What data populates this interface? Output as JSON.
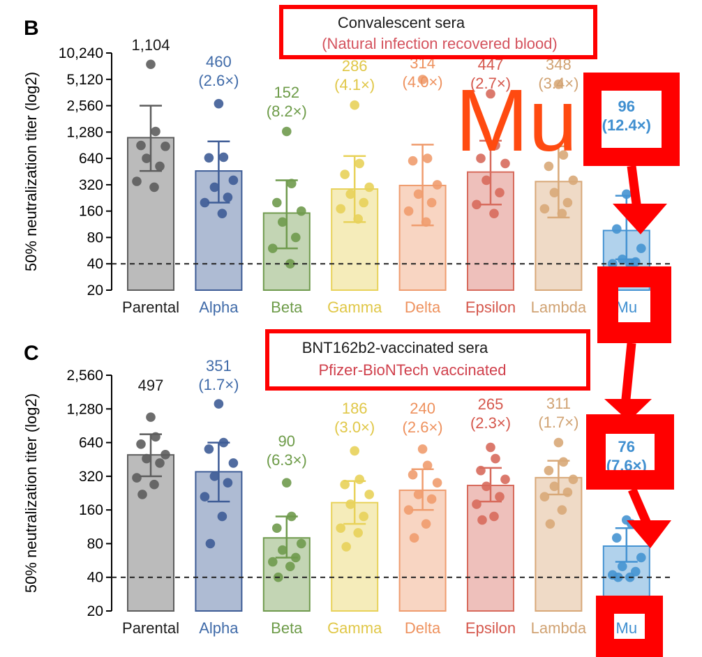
{
  "chart_data": [
    {
      "panel_label": "B",
      "type": "bar",
      "scale": "log2",
      "ylabel": "50% neutralization titer (log2)",
      "yticks": [
        20,
        40,
        80,
        160,
        320,
        640,
        1280,
        2560,
        5120,
        10240
      ],
      "ytick_labels": [
        "20",
        "40",
        "80",
        "160",
        "320",
        "640",
        "1,280",
        "2,560",
        "5,120",
        "10,240"
      ],
      "ylim": [
        20,
        10240
      ],
      "threshold": 40,
      "box_title": "Convalescent sera",
      "box_subtitle": "(Natural infection recovered blood)",
      "big_annotation": "Mu",
      "categories": [
        "Parental",
        "Alpha",
        "Beta",
        "Gamma",
        "Delta",
        "Epsilon",
        "Lambda",
        "Mu"
      ],
      "values": [
        1104,
        460,
        152,
        286,
        314,
        447,
        348,
        96
      ],
      "value_labels": [
        "1,104",
        "460",
        "152",
        "286",
        "314",
        "447",
        "348",
        "96"
      ],
      "fold_labels": [
        "",
        "(2.6×)",
        "(8.2×)",
        "(4.1×)",
        "(4.0×)",
        "(2.7×)",
        "(3.4×)",
        "(12.4×)"
      ],
      "error": [
        [
          460,
          2560
        ],
        [
          200,
          1000
        ],
        [
          60,
          360
        ],
        [
          120,
          680
        ],
        [
          110,
          920
        ],
        [
          190,
          1020
        ],
        [
          135,
          880
        ],
        [
          45,
          240
        ]
      ],
      "points": [
        [
          7600,
          1300,
          900,
          880,
          640,
          520,
          350,
          300
        ],
        [
          2700,
          660,
          650,
          360,
          300,
          230,
          200,
          150
        ],
        [
          1300,
          330,
          200,
          160,
          120,
          80,
          60,
          40
        ],
        [
          2600,
          560,
          420,
          300,
          250,
          200,
          170,
          130
        ],
        [
          5100,
          640,
          600,
          320,
          250,
          200,
          160,
          120
        ],
        [
          3500,
          900,
          640,
          560,
          360,
          260,
          190,
          150
        ],
        [
          4500,
          700,
          520,
          360,
          260,
          200,
          170,
          150
        ],
        [
          250,
          150,
          100,
          60,
          45,
          42,
          40,
          40
        ]
      ],
      "colors": {
        "Parental": "#5d5d5d",
        "Alpha": "#3e5c96",
        "Beta": "#6f9a4d",
        "Gamma": "#e8d25a",
        "Delta": "#ef9c6e",
        "Epsilon": "#d76a5c",
        "Lambda": "#d8a878",
        "Mu": "#4593d2"
      },
      "label_colors": {
        "Parental": "#1a1a1a",
        "Alpha": "#3f6aa8",
        "Beta": "#6d9b48",
        "Gamma": "#e0c747",
        "Delta": "#ee915d",
        "Epsilon": "#d5574c",
        "Lambda": "#d0a272",
        "Mu": "#3f8fd0"
      }
    },
    {
      "panel_label": "C",
      "type": "bar",
      "scale": "log2",
      "ylabel": "50% neutralization titer (log2)",
      "yticks": [
        20,
        40,
        80,
        160,
        320,
        640,
        1280,
        2560
      ],
      "ytick_labels": [
        "20",
        "40",
        "80",
        "160",
        "320",
        "640",
        "1,280",
        "2,560"
      ],
      "ylim": [
        20,
        2560
      ],
      "threshold": 40,
      "box_title": "BNT162b2-vaccinated sera",
      "box_subtitle": "Pfizer-BioNTech vaccinated",
      "categories": [
        "Parental",
        "Alpha",
        "Beta",
        "Gamma",
        "Delta",
        "Epsilon",
        "Lambda",
        "Mu"
      ],
      "values": [
        497,
        351,
        90,
        186,
        240,
        265,
        311,
        76
      ],
      "value_labels": [
        "497",
        "351",
        "90",
        "186",
        "240",
        "265",
        "311",
        "76"
      ],
      "fold_labels": [
        "",
        "(1.7×)",
        "(6.3×)",
        "(3.0×)",
        "(2.6×)",
        "(2.3×)",
        "(1.7×)",
        "(7.6×)"
      ],
      "error": [
        [
          320,
          760
        ],
        [
          190,
          640
        ],
        [
          60,
          140
        ],
        [
          120,
          290
        ],
        [
          160,
          370
        ],
        [
          190,
          380
        ],
        [
          220,
          440
        ],
        [
          55,
          110
        ]
      ],
      "points": [
        [
          1080,
          720,
          620,
          500,
          460,
          420,
          310,
          270,
          220
        ],
        [
          1420,
          640,
          560,
          420,
          320,
          280,
          210,
          140,
          80
        ],
        [
          280,
          140,
          110,
          80,
          70,
          60,
          55,
          50,
          40
        ],
        [
          540,
          300,
          270,
          220,
          180,
          140,
          110,
          100,
          75
        ],
        [
          560,
          400,
          330,
          280,
          220,
          200,
          160,
          120,
          90
        ],
        [
          580,
          460,
          360,
          300,
          260,
          210,
          180,
          140,
          130
        ],
        [
          640,
          430,
          360,
          300,
          260,
          230,
          210,
          160,
          120
        ],
        [
          130,
          120,
          90,
          60,
          50,
          45,
          42,
          40,
          40
        ]
      ],
      "colors": {
        "Parental": "#5d5d5d",
        "Alpha": "#3e5c96",
        "Beta": "#6f9a4d",
        "Gamma": "#e8d25a",
        "Delta": "#ef9c6e",
        "Epsilon": "#d76a5c",
        "Lambda": "#d8a878",
        "Mu": "#4593d2"
      },
      "label_colors": {
        "Parental": "#1a1a1a",
        "Alpha": "#3f6aa8",
        "Beta": "#6d9b48",
        "Gamma": "#e0c747",
        "Delta": "#ee915d",
        "Epsilon": "#d5574c",
        "Lambda": "#d0a272",
        "Mu": "#3f8fd0"
      }
    }
  ]
}
